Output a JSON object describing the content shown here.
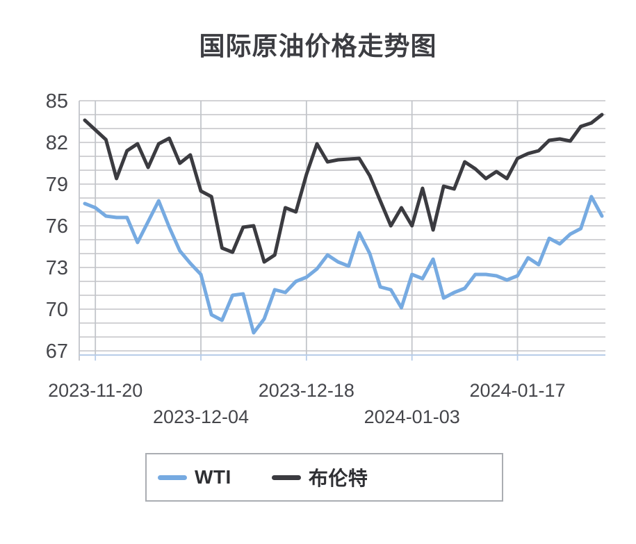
{
  "title": "国际原油价格走势图",
  "legend": {
    "items": [
      {
        "label": "WTI",
        "color": "#76AAE1"
      },
      {
        "label": "布伦特",
        "color": "#3B3B40"
      }
    ]
  },
  "colors": {
    "wti_line": "#76AAE1",
    "brent_line": "#3B3B40",
    "grid_line": "#cbcbcf",
    "vertical_grid_line": "#c2c5ca",
    "x_axis_line": "#b7cce8",
    "y_axis_line": "#c2c5ca",
    "axis_text": "#45464b",
    "title_text": "#3c3d42",
    "legend_border": "#aaadb2",
    "background": "#ffffff"
  },
  "chart_data": {
    "type": "line",
    "title": "国际原油价格走势图",
    "xlabel": "",
    "ylabel": "",
    "ylim": [
      67,
      85
    ],
    "y_ticks": [
      67,
      70,
      73,
      76,
      79,
      82,
      85
    ],
    "y_minor_grid_step": 1,
    "grid": "horizontal gridline every 1 unit; vertical gridlines at labeled date ticks",
    "legend_position": "bottom",
    "x_point_count": 50,
    "x_tick_labels": [
      {
        "label": "2023-11-20",
        "index": 1,
        "row": 1
      },
      {
        "label": "2023-12-04",
        "index": 11,
        "row": 2
      },
      {
        "label": "2023-12-18",
        "index": 21,
        "row": 1
      },
      {
        "label": "2024-01-03",
        "index": 31,
        "row": 2
      },
      {
        "label": "2024-01-17",
        "index": 41,
        "row": 1
      }
    ],
    "series": [
      {
        "name": "WTI",
        "color": "#76AAE1",
        "values": [
          77.6,
          77.3,
          76.7,
          76.6,
          76.6,
          74.8,
          76.3,
          77.8,
          75.9,
          74.2,
          73.3,
          72.5,
          69.6,
          69.2,
          71.0,
          71.1,
          68.3,
          69.3,
          71.4,
          71.2,
          72.0,
          72.3,
          72.9,
          73.9,
          73.4,
          73.1,
          75.5,
          74.0,
          71.6,
          71.4,
          70.1,
          72.5,
          72.2,
          73.6,
          70.8,
          71.2,
          71.5,
          72.5,
          72.5,
          72.4,
          72.1,
          72.4,
          73.7,
          73.2,
          75.1,
          74.7,
          75.4,
          75.8,
          78.1,
          76.7
        ]
      },
      {
        "name": "布伦特",
        "color": "#3B3B40",
        "values": [
          83.6,
          82.9,
          82.2,
          79.4,
          81.4,
          81.9,
          80.2,
          81.9,
          82.3,
          80.5,
          81.1,
          78.5,
          78.1,
          74.4,
          74.1,
          75.9,
          76.0,
          73.4,
          73.9,
          77.3,
          77.0,
          79.7,
          81.9,
          80.6,
          80.75,
          80.8,
          80.85,
          79.6,
          77.8,
          76.0,
          77.3,
          76.0,
          78.7,
          75.7,
          78.85,
          78.65,
          80.6,
          80.1,
          79.4,
          79.9,
          79.4,
          80.85,
          81.2,
          81.4,
          82.15,
          82.25,
          82.1,
          83.15,
          83.4,
          84.0
        ]
      }
    ]
  }
}
